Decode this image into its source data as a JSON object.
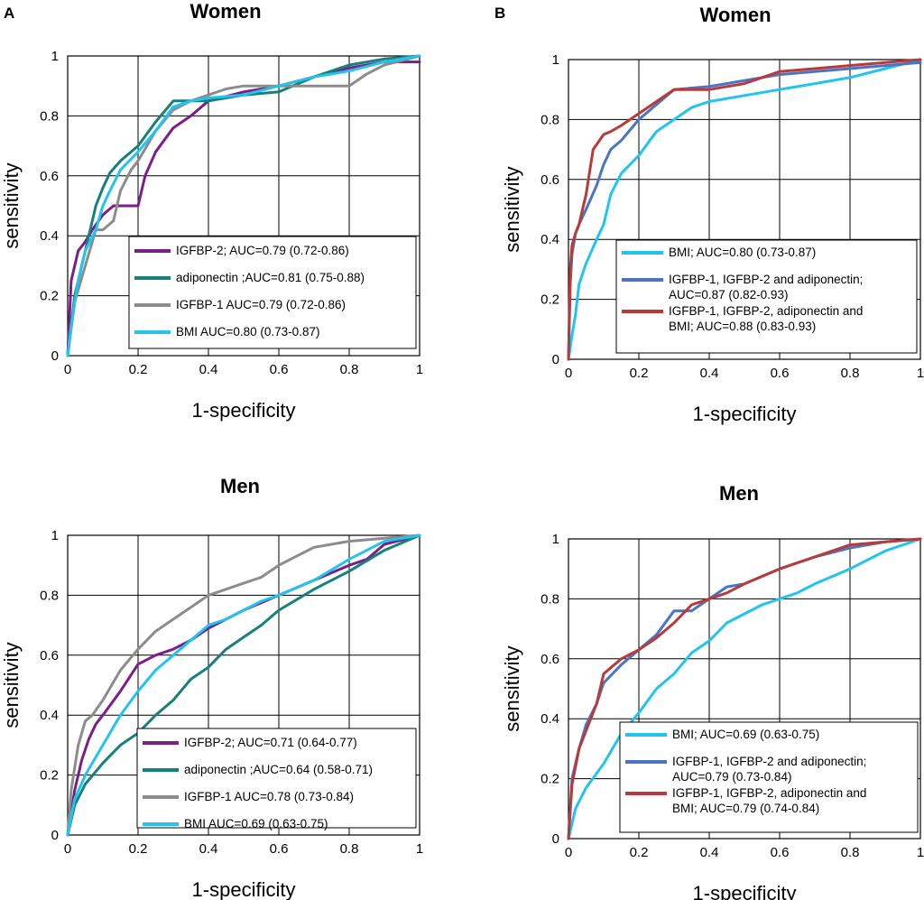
{
  "panel_labels": [
    "A",
    "B"
  ],
  "colors": {
    "IGFBP-2": "#7a1f86",
    "adiponectin": "#17807a",
    "IGFBP-1": "#8c8c8c",
    "BMI": "#22c4ee",
    "combo3": "#4b74c4",
    "combo4": "#b83a3a"
  },
  "chart_data": [
    {
      "id": "A-women",
      "type": "line",
      "title": "Women",
      "xlabel": "1-specificity",
      "ylabel": "sensitivity",
      "xlim": [
        0,
        1
      ],
      "ylim": [
        0,
        1
      ],
      "xticks": [
        "0",
        "0.2",
        "0.4",
        "0.6",
        "0.8",
        "1"
      ],
      "yticks": [
        "0",
        "0.2",
        "0.4",
        "0.6",
        "0.8",
        "1"
      ],
      "grid": true,
      "legend_position": "bottom-right",
      "series": [
        {
          "name": "IGFBP-2; AUC=0.79 (0.72-0.86)",
          "color_key": "IGFBP-2",
          "x": [
            0,
            0.01,
            0.02,
            0.03,
            0.05,
            0.07,
            0.1,
            0.13,
            0.15,
            0.2,
            0.22,
            0.25,
            0.3,
            0.35,
            0.4,
            0.5,
            0.6,
            0.7,
            0.8,
            0.9,
            1
          ],
          "y": [
            0,
            0.25,
            0.3,
            0.35,
            0.38,
            0.42,
            0.47,
            0.5,
            0.5,
            0.5,
            0.6,
            0.68,
            0.76,
            0.8,
            0.85,
            0.88,
            0.9,
            0.93,
            0.96,
            0.98,
            0.98
          ]
        },
        {
          "name": "adiponectin ;AUC=0.81 (0.75-0.88)",
          "color_key": "adiponectin",
          "x": [
            0,
            0.02,
            0.04,
            0.06,
            0.08,
            0.1,
            0.12,
            0.15,
            0.2,
            0.25,
            0.3,
            0.35,
            0.4,
            0.5,
            0.6,
            0.7,
            0.8,
            0.9,
            1
          ],
          "y": [
            0,
            0.2,
            0.3,
            0.4,
            0.5,
            0.56,
            0.61,
            0.65,
            0.7,
            0.78,
            0.85,
            0.85,
            0.85,
            0.87,
            0.88,
            0.93,
            0.97,
            0.99,
            1
          ]
        },
        {
          "name": "IGFBP-1 AUC=0.79 (0.72-0.86)",
          "color_key": "IGFBP-1",
          "x": [
            0,
            0.02,
            0.05,
            0.08,
            0.1,
            0.13,
            0.15,
            0.18,
            0.2,
            0.25,
            0.3,
            0.35,
            0.4,
            0.45,
            0.5,
            0.6,
            0.7,
            0.8,
            0.85,
            0.9,
            1
          ],
          "y": [
            0,
            0.18,
            0.3,
            0.42,
            0.42,
            0.45,
            0.55,
            0.62,
            0.65,
            0.75,
            0.82,
            0.85,
            0.87,
            0.89,
            0.9,
            0.9,
            0.9,
            0.9,
            0.94,
            0.97,
            1
          ]
        },
        {
          "name": "BMI AUC=0.80 (0.73-0.87)",
          "color_key": "BMI",
          "x": [
            0,
            0.01,
            0.03,
            0.05,
            0.08,
            0.1,
            0.12,
            0.15,
            0.2,
            0.25,
            0.3,
            0.35,
            0.4,
            0.5,
            0.6,
            0.7,
            0.8,
            0.9,
            1
          ],
          "y": [
            0,
            0.1,
            0.25,
            0.35,
            0.42,
            0.5,
            0.55,
            0.62,
            0.68,
            0.75,
            0.83,
            0.85,
            0.86,
            0.87,
            0.9,
            0.93,
            0.95,
            0.98,
            1
          ]
        }
      ]
    },
    {
      "id": "B-women",
      "type": "line",
      "title": "Women",
      "xlabel": "1-specificity",
      "ylabel": "sensitivity",
      "xlim": [
        0,
        1
      ],
      "ylim": [
        0,
        1
      ],
      "xticks": [
        "0",
        "0.2",
        "0.4",
        "0.6",
        "0.8",
        "1"
      ],
      "yticks": [
        "0",
        "0.2",
        "0.4",
        "0.6",
        "0.8",
        "1"
      ],
      "grid": true,
      "legend_position": "bottom-right",
      "series": [
        {
          "name": "BMI; AUC=0.80 (0.73-0.87)",
          "color_key": "BMI",
          "x": [
            0,
            0.01,
            0.02,
            0.03,
            0.05,
            0.08,
            0.1,
            0.12,
            0.15,
            0.2,
            0.25,
            0.3,
            0.35,
            0.4,
            0.5,
            0.6,
            0.7,
            0.8,
            0.9,
            1
          ],
          "y": [
            0,
            0.08,
            0.15,
            0.25,
            0.32,
            0.4,
            0.45,
            0.55,
            0.62,
            0.68,
            0.76,
            0.8,
            0.84,
            0.86,
            0.88,
            0.9,
            0.92,
            0.94,
            0.97,
            1
          ]
        },
        {
          "name": "IGFBP-1, IGFBP-2 and adiponectin; AUC=0.87 (0.82-0.93)",
          "color_key": "combo3",
          "x": [
            0,
            0.005,
            0.01,
            0.02,
            0.03,
            0.05,
            0.08,
            0.1,
            0.12,
            0.15,
            0.2,
            0.25,
            0.3,
            0.4,
            0.5,
            0.6,
            0.7,
            0.8,
            0.9,
            1
          ],
          "y": [
            0,
            0.25,
            0.35,
            0.42,
            0.45,
            0.5,
            0.58,
            0.65,
            0.7,
            0.73,
            0.8,
            0.85,
            0.9,
            0.91,
            0.93,
            0.95,
            0.96,
            0.97,
            0.98,
            0.99
          ]
        },
        {
          "name": "IGFBP-1, IGFBP-2, adiponectin and BMI; AUC=0.88 (0.83-0.93)",
          "color_key": "combo4",
          "x": [
            0,
            0.005,
            0.01,
            0.02,
            0.03,
            0.05,
            0.07,
            0.1,
            0.12,
            0.15,
            0.2,
            0.25,
            0.3,
            0.4,
            0.5,
            0.6,
            0.7,
            0.8,
            0.9,
            1
          ],
          "y": [
            0,
            0.3,
            0.38,
            0.42,
            0.45,
            0.55,
            0.7,
            0.75,
            0.76,
            0.78,
            0.82,
            0.86,
            0.9,
            0.9,
            0.92,
            0.96,
            0.97,
            0.98,
            0.99,
            1
          ]
        }
      ]
    },
    {
      "id": "A-men",
      "type": "line",
      "title": "Men",
      "xlabel": "1-specificity",
      "ylabel": "sensitivity",
      "xlim": [
        0,
        1
      ],
      "ylim": [
        0,
        1
      ],
      "xticks": [
        "0",
        "0.2",
        "0.4",
        "0.6",
        "0.8",
        "1"
      ],
      "yticks": [
        "0",
        "0.2",
        "0.4",
        "0.6",
        "0.8",
        "1"
      ],
      "grid": true,
      "legend_position": "bottom-right",
      "series": [
        {
          "name": "IGFBP-2; AUC=0.71 (0.64-0.77)",
          "color_key": "IGFBP-2",
          "x": [
            0,
            0.02,
            0.04,
            0.06,
            0.08,
            0.1,
            0.15,
            0.2,
            0.25,
            0.3,
            0.35,
            0.4,
            0.45,
            0.5,
            0.6,
            0.7,
            0.8,
            0.85,
            0.9,
            1
          ],
          "y": [
            0,
            0.15,
            0.25,
            0.32,
            0.37,
            0.4,
            0.48,
            0.57,
            0.6,
            0.62,
            0.65,
            0.69,
            0.72,
            0.75,
            0.8,
            0.85,
            0.9,
            0.92,
            0.97,
            1
          ]
        },
        {
          "name": "adiponectin ;AUC=0.64 (0.58-0.71)",
          "color_key": "adiponectin",
          "x": [
            0,
            0.02,
            0.05,
            0.1,
            0.15,
            0.2,
            0.25,
            0.3,
            0.35,
            0.4,
            0.45,
            0.5,
            0.55,
            0.6,
            0.7,
            0.8,
            0.9,
            1
          ],
          "y": [
            0,
            0.1,
            0.17,
            0.24,
            0.3,
            0.34,
            0.4,
            0.45,
            0.52,
            0.56,
            0.62,
            0.66,
            0.7,
            0.75,
            0.82,
            0.88,
            0.95,
            1
          ]
        },
        {
          "name": "IGFBP-1 AUC=0.78 (0.73-0.84)",
          "color_key": "IGFBP-1",
          "x": [
            0,
            0.01,
            0.03,
            0.05,
            0.07,
            0.1,
            0.15,
            0.2,
            0.25,
            0.3,
            0.35,
            0.4,
            0.45,
            0.5,
            0.55,
            0.6,
            0.65,
            0.7,
            0.8,
            0.9,
            1
          ],
          "y": [
            0,
            0.15,
            0.3,
            0.38,
            0.4,
            0.45,
            0.55,
            0.62,
            0.68,
            0.72,
            0.76,
            0.8,
            0.82,
            0.84,
            0.86,
            0.9,
            0.93,
            0.96,
            0.98,
            0.99,
            1
          ]
        },
        {
          "name": "BMI AUC=0.69 (0.63-0.75)",
          "color_key": "BMI",
          "x": [
            0,
            0.02,
            0.05,
            0.1,
            0.15,
            0.2,
            0.25,
            0.3,
            0.35,
            0.4,
            0.45,
            0.5,
            0.55,
            0.6,
            0.7,
            0.8,
            0.9,
            1
          ],
          "y": [
            0,
            0.12,
            0.2,
            0.3,
            0.4,
            0.48,
            0.55,
            0.6,
            0.65,
            0.7,
            0.72,
            0.75,
            0.78,
            0.8,
            0.85,
            0.92,
            0.98,
            1
          ]
        }
      ]
    },
    {
      "id": "B-men",
      "type": "line",
      "title": "Men",
      "xlabel": "1-specificity",
      "ylabel": "sensitivity",
      "xlim": [
        0,
        1
      ],
      "ylim": [
        0,
        1
      ],
      "xticks": [
        "0",
        "0.2",
        "0.4",
        "0.6",
        "0.8",
        "1"
      ],
      "yticks": [
        "0",
        "0.2",
        "0.4",
        "0.6",
        "0.8",
        "1"
      ],
      "grid": true,
      "legend_position": "bottom-right",
      "series": [
        {
          "name": "BMI; AUC=0.69 (0.63-0.75)",
          "color_key": "BMI",
          "x": [
            0,
            0.02,
            0.05,
            0.1,
            0.15,
            0.2,
            0.25,
            0.3,
            0.35,
            0.4,
            0.45,
            0.5,
            0.55,
            0.6,
            0.65,
            0.7,
            0.8,
            0.9,
            1
          ],
          "y": [
            0,
            0.1,
            0.17,
            0.25,
            0.35,
            0.42,
            0.5,
            0.55,
            0.62,
            0.66,
            0.72,
            0.75,
            0.78,
            0.8,
            0.82,
            0.85,
            0.9,
            0.96,
            1
          ]
        },
        {
          "name": "IGFBP-1, IGFBP-2 and adiponectin; AUC=0.79 (0.73-0.84)",
          "color_key": "combo3",
          "x": [
            0,
            0.01,
            0.03,
            0.05,
            0.08,
            0.1,
            0.15,
            0.2,
            0.25,
            0.3,
            0.35,
            0.4,
            0.45,
            0.5,
            0.6,
            0.7,
            0.8,
            0.9,
            1
          ],
          "y": [
            0,
            0.2,
            0.3,
            0.38,
            0.45,
            0.52,
            0.58,
            0.63,
            0.68,
            0.76,
            0.76,
            0.8,
            0.84,
            0.85,
            0.9,
            0.94,
            0.97,
            0.99,
            1
          ]
        },
        {
          "name": "IGFBP-1, IGFBP-2, adiponectin and BMI; AUC=0.79 (0.74-0.84)",
          "color_key": "combo4",
          "x": [
            0,
            0.01,
            0.03,
            0.05,
            0.08,
            0.1,
            0.15,
            0.2,
            0.25,
            0.3,
            0.35,
            0.4,
            0.45,
            0.5,
            0.6,
            0.7,
            0.8,
            0.9,
            1
          ],
          "y": [
            0,
            0.18,
            0.3,
            0.36,
            0.45,
            0.55,
            0.6,
            0.63,
            0.67,
            0.72,
            0.78,
            0.8,
            0.82,
            0.85,
            0.9,
            0.94,
            0.98,
            0.99,
            1
          ]
        }
      ]
    }
  ]
}
